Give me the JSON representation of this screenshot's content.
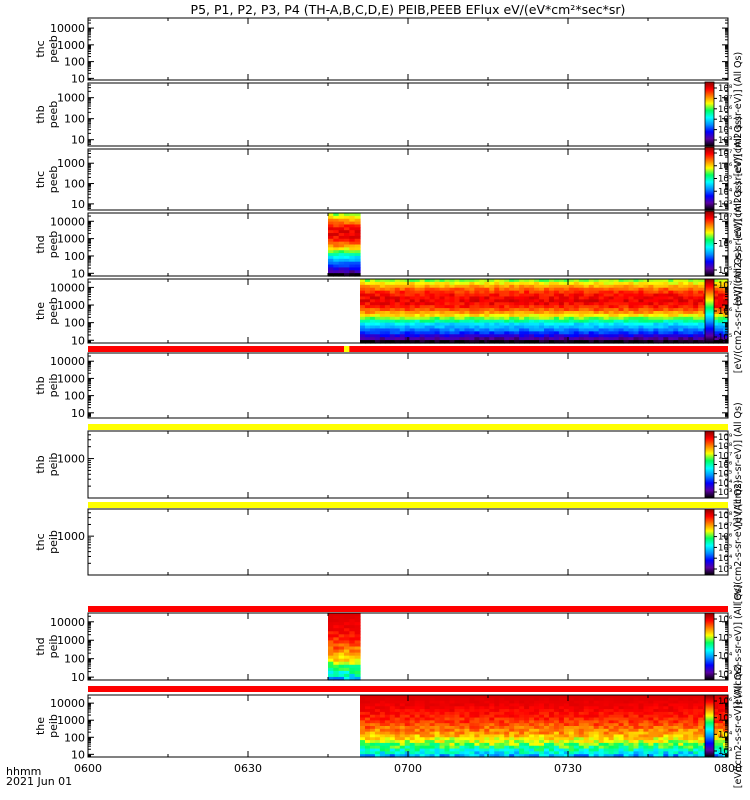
{
  "title": "P5, P1, P2, P3, P4 (TH-A,B,C,D,E) PEIB,PEEB EFlux eV/(eV*cm²*sec*sr)",
  "footer": {
    "time_label": "hhmm",
    "date_label": "2021 Jun 01"
  },
  "chart_data": {
    "type": "heatmap",
    "x_ticks": [
      "0600",
      "0630",
      "0700",
      "0730",
      "0800"
    ],
    "x_range": [
      "06:00",
      "08:00"
    ],
    "panels": [
      {
        "label": [
          "thc",
          "peeb"
        ],
        "y_scale": "log",
        "y_ticks": [
          "10000",
          "1000",
          "100",
          "10"
        ],
        "ylim": [
          8,
          40000
        ],
        "data": "none"
      },
      {
        "label": [
          "thb",
          "peeb"
        ],
        "y_scale": "log",
        "y_ticks": [
          "1000",
          "100",
          "10"
        ],
        "ylim": [
          5,
          5000
        ],
        "data": "none"
      },
      {
        "label": [
          "thc",
          "peeb"
        ],
        "y_scale": "log",
        "y_ticks": [
          "1000",
          "100",
          "10"
        ],
        "ylim": [
          5,
          5000
        ],
        "data": "none"
      },
      {
        "label": [
          "thd",
          "peeb"
        ],
        "y_scale": "log",
        "y_ticks": [
          "10000",
          "1000",
          "100",
          "10"
        ],
        "ylim": [
          7,
          30000
        ],
        "data": "spectrogram",
        "coverage": [
          "06:45",
          "06:51"
        ]
      },
      {
        "label": [
          "the",
          "peeb"
        ],
        "y_scale": "log",
        "y_ticks": [
          "10000",
          "1000",
          "100",
          "10"
        ],
        "ylim": [
          7,
          30000
        ],
        "data": "spectrogram",
        "coverage": [
          "06:51",
          "08:00"
        ]
      },
      {
        "label": [
          "thb",
          "peib"
        ],
        "y_scale": "log",
        "y_ticks": [
          "10000",
          "1000",
          "100",
          "10"
        ],
        "ylim": [
          5,
          30000
        ],
        "data": "none"
      },
      {
        "label": [
          "thb",
          "peib"
        ],
        "y_scale": "log",
        "y_ticks": [
          "1000"
        ],
        "ylim": [
          100,
          5000
        ],
        "data": "none"
      },
      {
        "label": [
          "thc",
          "peib"
        ],
        "y_scale": "log",
        "y_ticks": [
          "1000"
        ],
        "ylim": [
          100,
          5000
        ],
        "data": "none"
      },
      {
        "label": [
          "thd",
          "peib"
        ],
        "y_scale": "log",
        "y_ticks": [
          "10000",
          "1000",
          "100",
          "10"
        ],
        "ylim": [
          7,
          30000
        ],
        "data": "spectrogram",
        "coverage": [
          "06:45",
          "06:51"
        ]
      },
      {
        "label": [
          "the",
          "peib"
        ],
        "y_scale": "log",
        "y_ticks": [
          "10000",
          "1000",
          "100",
          "10"
        ],
        "ylim": [
          7,
          30000
        ],
        "data": "spectrogram",
        "coverage": [
          "06:51",
          "08:00"
        ]
      }
    ],
    "status_bars": [
      {
        "after_panel": 5,
        "color": "#ff0000",
        "segments": [
          {
            "from": "06:48",
            "to": "06:49",
            "color": "#ffff00"
          }
        ]
      },
      {
        "after_panel": 6,
        "color": "#ffff00"
      },
      {
        "after_panel": 7,
        "color": "#ffff00"
      },
      {
        "after_panel": 8,
        "color": "#ff0000"
      },
      {
        "after_panel": 9,
        "color": "#ff0000"
      }
    ],
    "colorbars": [
      {
        "label": "[eV/(cm2-s-sr-eV)] (All Qs)",
        "ticks": [
          "10⁸",
          "10⁷",
          "10⁶",
          "10⁵",
          "10⁴",
          "10³"
        ]
      },
      {
        "label": "[eV/(cm2-s-sr-eV)] (All Qs)",
        "ticks": [
          "10⁷",
          "10⁶",
          "10⁵",
          "10⁴",
          "10³"
        ]
      },
      {
        "label": "[eV/(cm2-s-sr-eV)] (All Qs)",
        "ticks": [
          "10⁷",
          "10⁶",
          "10⁵"
        ]
      },
      {
        "label": "[eV/(cm2-s-sr-eV)] (All Qs)",
        "ticks": [
          "10⁷",
          "10⁶",
          "10⁵"
        ]
      },
      {
        "label": "[eV/(cm2-s-sr-eV)] (All Qs)",
        "ticks": [
          "10⁹",
          "10⁸",
          "10⁷",
          "10⁶",
          "10⁵",
          "10⁴",
          "10³"
        ]
      },
      {
        "label": "[eV/(cm2-s-sr-eV)] (All Qs)",
        "ticks": [
          "10⁸",
          "10⁷",
          "10⁶",
          "10⁵",
          "10⁴",
          "10³"
        ]
      },
      {
        "label": "[eV/(cm2-s-sr-eV)] (All Qs)",
        "ticks": [
          "10⁶",
          "10⁵",
          "10⁴",
          "10³"
        ]
      },
      {
        "label": "[eV/(cm2-s-sr-eV)] (All Qs)",
        "ticks": [
          "10⁶",
          "10⁵",
          "10⁴",
          "10³"
        ]
      }
    ],
    "colorscale": [
      "#000000",
      "#5a00a0",
      "#0000ff",
      "#0090ff",
      "#00ffff",
      "#00ff60",
      "#ffff00",
      "#ff8000",
      "#ff0000",
      "#8a0000"
    ]
  }
}
